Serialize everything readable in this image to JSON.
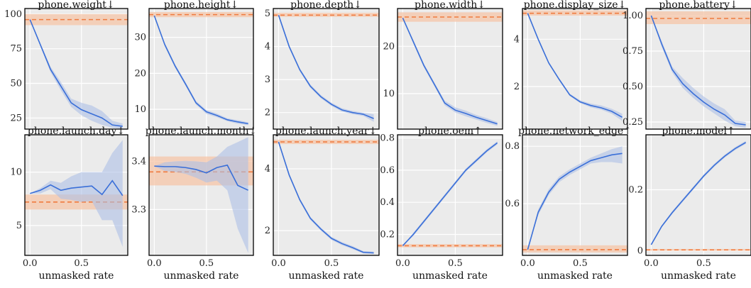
{
  "colors": {
    "series": "#3a6fd8",
    "band": "#aebfe6",
    "baseline": "#f07b3f",
    "baseline_band": "#f6c6a8",
    "panel_bg": "#ebebeb",
    "grid": "#ffffff"
  },
  "chart_data": [
    {
      "type": "line",
      "title": "phone.weight↓",
      "xlabel": "",
      "xlim": [
        -0.05,
        0.95
      ],
      "ylim": [
        17,
        104
      ],
      "yticks": [
        25,
        50,
        75,
        100
      ],
      "xticks": [],
      "baseline": 96,
      "baseline_band": [
        92,
        100
      ],
      "x": [
        0,
        0.1,
        0.2,
        0.3,
        0.4,
        0.5,
        0.6,
        0.7,
        0.8,
        0.9
      ],
      "y": [
        96,
        78,
        60,
        48,
        36,
        31,
        28,
        25,
        20,
        19
      ],
      "y_lo": [
        96,
        77,
        58,
        45,
        33,
        27,
        23,
        20,
        18,
        17
      ],
      "y_hi": [
        96,
        79,
        62,
        51,
        39,
        36,
        34,
        30,
        23,
        21
      ]
    },
    {
      "type": "line",
      "title": "phone.height↓",
      "xlabel": "",
      "xlim": [
        -0.05,
        0.95
      ],
      "ylim": [
        4.5,
        38
      ],
      "yticks": [
        10,
        20,
        30
      ],
      "xticks": [],
      "baseline": 36.3,
      "baseline_band": [
        35.6,
        37
      ],
      "x": [
        0,
        0.1,
        0.2,
        0.3,
        0.4,
        0.5,
        0.6,
        0.7,
        0.8,
        0.9
      ],
      "y": [
        36,
        28,
        22,
        17,
        11.8,
        9.3,
        8.3,
        7.1,
        6.5,
        6.0
      ],
      "y_lo": [
        36,
        27.5,
        21.5,
        16.5,
        11.3,
        8.7,
        7.8,
        6.7,
        6.0,
        5.6
      ],
      "y_hi": [
        36,
        28.5,
        22.5,
        17.5,
        12.3,
        9.8,
        8.8,
        7.5,
        7.0,
        6.4
      ]
    },
    {
      "type": "line",
      "title": "phone.depth↓",
      "xlabel": "",
      "xlim": [
        -0.05,
        0.95
      ],
      "ylim": [
        1.5,
        5.15
      ],
      "yticks": [
        2,
        3,
        4,
        5
      ],
      "xticks": [],
      "baseline": 4.95,
      "baseline_band": [
        4.9,
        5.02
      ],
      "x": [
        0,
        0.1,
        0.2,
        0.3,
        0.4,
        0.5,
        0.6,
        0.7,
        0.8,
        0.9
      ],
      "y": [
        4.95,
        4.0,
        3.3,
        2.8,
        2.48,
        2.25,
        2.08,
        2.0,
        1.95,
        1.82
      ],
      "y_lo": [
        4.95,
        3.95,
        3.25,
        2.75,
        2.43,
        2.2,
        2.03,
        1.95,
        1.9,
        1.72
      ],
      "y_hi": [
        4.95,
        4.05,
        3.35,
        2.85,
        2.53,
        2.3,
        2.13,
        2.05,
        2.0,
        1.95
      ]
    },
    {
      "type": "line",
      "title": "phone.width↓",
      "xlabel": "",
      "xlim": [
        -0.05,
        0.95
      ],
      "ylim": [
        2.5,
        28
      ],
      "yticks": [
        10,
        20
      ],
      "xticks": [],
      "baseline": 26.2,
      "baseline_band": [
        25.2,
        27.2
      ],
      "x": [
        0,
        0.1,
        0.2,
        0.3,
        0.4,
        0.5,
        0.6,
        0.7,
        0.8,
        0.9
      ],
      "y": [
        26,
        21,
        16,
        12,
        8,
        6.5,
        5.8,
        5.0,
        4.3,
        3.6
      ],
      "y_lo": [
        26,
        20.6,
        15.6,
        11.6,
        7.5,
        6.0,
        5.2,
        4.5,
        3.8,
        3.2
      ],
      "y_hi": [
        26,
        21.4,
        16.4,
        12.4,
        8.5,
        7.1,
        6.4,
        5.5,
        4.8,
        4.0
      ]
    },
    {
      "type": "line",
      "title": "phone.display_size↓",
      "xlabel": "",
      "xlim": [
        -0.05,
        0.95
      ],
      "ylim": [
        0.2,
        5.3
      ],
      "yticks": [
        2,
        4
      ],
      "xticks": [],
      "baseline": 5.1,
      "baseline_band": [
        5.0,
        5.22
      ],
      "x": [
        0,
        0.1,
        0.2,
        0.3,
        0.4,
        0.5,
        0.6,
        0.7,
        0.8,
        0.9
      ],
      "y": [
        5.1,
        4.0,
        3.0,
        2.3,
        1.65,
        1.35,
        1.2,
        1.1,
        0.95,
        0.7
      ],
      "y_lo": [
        5.1,
        3.95,
        2.95,
        2.25,
        1.6,
        1.3,
        1.12,
        1.02,
        0.85,
        0.55
      ],
      "y_hi": [
        5.1,
        4.05,
        3.05,
        2.35,
        1.7,
        1.42,
        1.28,
        1.2,
        1.06,
        0.85
      ]
    },
    {
      "type": "line",
      "title": "phone.battery↓",
      "xlabel": "",
      "xlim": [
        -0.05,
        0.95
      ],
      "ylim": [
        0.2,
        1.05
      ],
      "yticks": [
        0.25,
        0.5,
        0.75,
        1.0
      ],
      "xticks": [],
      "ytick_labels": [
        "0.25",
        "0.50",
        "0.75",
        "1.00"
      ],
      "baseline": 0.98,
      "baseline_band": [
        0.94,
        1.03
      ],
      "x": [
        0,
        0.1,
        0.2,
        0.3,
        0.4,
        0.5,
        0.6,
        0.7,
        0.8,
        0.9
      ],
      "y": [
        1.0,
        0.8,
        0.62,
        0.52,
        0.45,
        0.39,
        0.34,
        0.3,
        0.24,
        0.23
      ],
      "y_lo": [
        1.0,
        0.78,
        0.6,
        0.49,
        0.42,
        0.36,
        0.31,
        0.26,
        0.22,
        0.21
      ],
      "y_hi": [
        1.0,
        0.82,
        0.64,
        0.56,
        0.49,
        0.43,
        0.38,
        0.34,
        0.26,
        0.25
      ]
    },
    {
      "type": "line",
      "title": "phone.launch.day↓",
      "xlabel": "unmasked rate",
      "xlim": [
        -0.05,
        0.95
      ],
      "ylim": [
        2.2,
        13.5
      ],
      "yticks": [
        5,
        10
      ],
      "xticks": [
        0.0,
        0.5
      ],
      "xtick_labels": [
        "0.0",
        "0.5"
      ],
      "baseline": 7.2,
      "baseline_band": [
        6.5,
        7.9
      ],
      "x": [
        0,
        0.1,
        0.2,
        0.3,
        0.4,
        0.5,
        0.6,
        0.7,
        0.8,
        0.9
      ],
      "y": [
        8.0,
        8.3,
        8.8,
        8.3,
        8.5,
        8.6,
        8.7,
        7.9,
        9.2,
        7.8
      ],
      "y_lo": [
        8.0,
        8.0,
        8.4,
        7.5,
        7.4,
        7.2,
        7.3,
        5.5,
        5.5,
        3.0
      ],
      "y_hi": [
        8.0,
        8.5,
        9.2,
        9.0,
        9.6,
        10.0,
        10.0,
        10.0,
        11.8,
        13.0
      ]
    },
    {
      "type": "line",
      "title": "phone.launch.month↓",
      "xlabel": "unmasked rate",
      "xlim": [
        -0.05,
        0.95
      ],
      "ylim": [
        3.205,
        3.455
      ],
      "yticks": [
        3.3,
        3.4
      ],
      "xticks": [
        0.0,
        0.5
      ],
      "xtick_labels": [
        "0.0",
        "0.5"
      ],
      "baseline": 3.378,
      "baseline_band": [
        3.35,
        3.41
      ],
      "x": [
        0,
        0.1,
        0.2,
        0.3,
        0.4,
        0.5,
        0.6,
        0.7,
        0.8,
        0.9
      ],
      "y": [
        3.39,
        3.389,
        3.389,
        3.387,
        3.383,
        3.376,
        3.387,
        3.392,
        3.35,
        3.34
      ],
      "y_lo": [
        3.39,
        3.38,
        3.378,
        3.374,
        3.366,
        3.356,
        3.36,
        3.34,
        3.26,
        3.21
      ],
      "y_hi": [
        3.39,
        3.398,
        3.4,
        3.401,
        3.4,
        3.398,
        3.41,
        3.43,
        3.44,
        3.45
      ]
    },
    {
      "type": "line",
      "title": "phone.launch.year↓",
      "xlabel": "unmasked rate",
      "xlim": [
        -0.05,
        0.95
      ],
      "ylim": [
        1.2,
        5.1
      ],
      "yticks": [
        2,
        4
      ],
      "xticks": [
        0.0,
        0.5
      ],
      "xtick_labels": [
        "0.0",
        "0.5"
      ],
      "baseline": 4.87,
      "baseline_band": [
        4.8,
        4.94
      ],
      "x": [
        0,
        0.1,
        0.2,
        0.3,
        0.4,
        0.5,
        0.6,
        0.7,
        0.8,
        0.9
      ],
      "y": [
        4.87,
        3.8,
        3.0,
        2.4,
        2.05,
        1.75,
        1.58,
        1.45,
        1.3,
        1.28
      ],
      "y_lo": [
        4.87,
        3.75,
        2.95,
        2.35,
        2.0,
        1.7,
        1.53,
        1.4,
        1.26,
        1.24
      ],
      "y_hi": [
        4.87,
        3.85,
        3.05,
        2.45,
        2.1,
        1.8,
        1.63,
        1.5,
        1.34,
        1.32
      ]
    },
    {
      "type": "line",
      "title": "phone.oem↑",
      "xlabel": "unmasked rate",
      "xlim": [
        -0.05,
        0.95
      ],
      "ylim": [
        0.07,
        0.82
      ],
      "yticks": [
        0.2,
        0.4,
        0.6,
        0.8
      ],
      "xticks": [
        0.0,
        0.5
      ],
      "xtick_labels": [
        "0.0",
        "0.5"
      ],
      "baseline": 0.13,
      "baseline_band": [
        0.12,
        0.14
      ],
      "x": [
        0,
        0.1,
        0.2,
        0.3,
        0.4,
        0.5,
        0.6,
        0.7,
        0.8,
        0.9
      ],
      "y": [
        0.13,
        0.2,
        0.28,
        0.36,
        0.44,
        0.52,
        0.6,
        0.66,
        0.72,
        0.77
      ],
      "y_lo": [
        0.13,
        0.19,
        0.27,
        0.35,
        0.43,
        0.51,
        0.59,
        0.65,
        0.71,
        0.76
      ],
      "y_hi": [
        0.13,
        0.21,
        0.29,
        0.37,
        0.45,
        0.53,
        0.61,
        0.67,
        0.73,
        0.78
      ]
    },
    {
      "type": "line",
      "title": "phone.network_edge↑",
      "xlabel": "unmasked rate",
      "xlim": [
        -0.05,
        0.95
      ],
      "ylim": [
        0.42,
        0.84
      ],
      "yticks": [
        0.6,
        0.8
      ],
      "xticks": [
        0.0,
        0.5
      ],
      "xtick_labels": [
        "0.0",
        "0.5"
      ],
      "baseline": 0.44,
      "baseline_band": [
        0.43,
        0.455
      ],
      "x": [
        0,
        0.1,
        0.2,
        0.3,
        0.4,
        0.5,
        0.6,
        0.7,
        0.8,
        0.9
      ],
      "y": [
        0.44,
        0.57,
        0.64,
        0.685,
        0.71,
        0.73,
        0.75,
        0.76,
        0.77,
        0.775
      ],
      "y_lo": [
        0.44,
        0.56,
        0.63,
        0.675,
        0.7,
        0.72,
        0.74,
        0.745,
        0.745,
        0.74
      ],
      "y_hi": [
        0.44,
        0.58,
        0.65,
        0.695,
        0.72,
        0.74,
        0.76,
        0.775,
        0.79,
        0.8
      ]
    },
    {
      "type": "line",
      "title": "phone.model↑",
      "xlabel": "unmasked rate",
      "xlim": [
        -0.05,
        0.95
      ],
      "ylim": [
        -0.015,
        0.38
      ],
      "yticks": [
        0.0,
        0.2
      ],
      "xticks": [
        0.0,
        0.5
      ],
      "xtick_labels": [
        "0.0",
        "0.5"
      ],
      "baseline": 0.003,
      "baseline_band": [
        0.0,
        0.006
      ],
      "x": [
        0,
        0.1,
        0.2,
        0.3,
        0.4,
        0.5,
        0.6,
        0.7,
        0.8,
        0.9
      ],
      "y": [
        0.02,
        0.08,
        0.125,
        0.165,
        0.205,
        0.245,
        0.28,
        0.31,
        0.335,
        0.355
      ],
      "y_lo": [
        0.02,
        0.077,
        0.12,
        0.16,
        0.2,
        0.24,
        0.275,
        0.305,
        0.33,
        0.35
      ],
      "y_hi": [
        0.02,
        0.083,
        0.13,
        0.17,
        0.21,
        0.25,
        0.285,
        0.315,
        0.34,
        0.36
      ]
    }
  ]
}
